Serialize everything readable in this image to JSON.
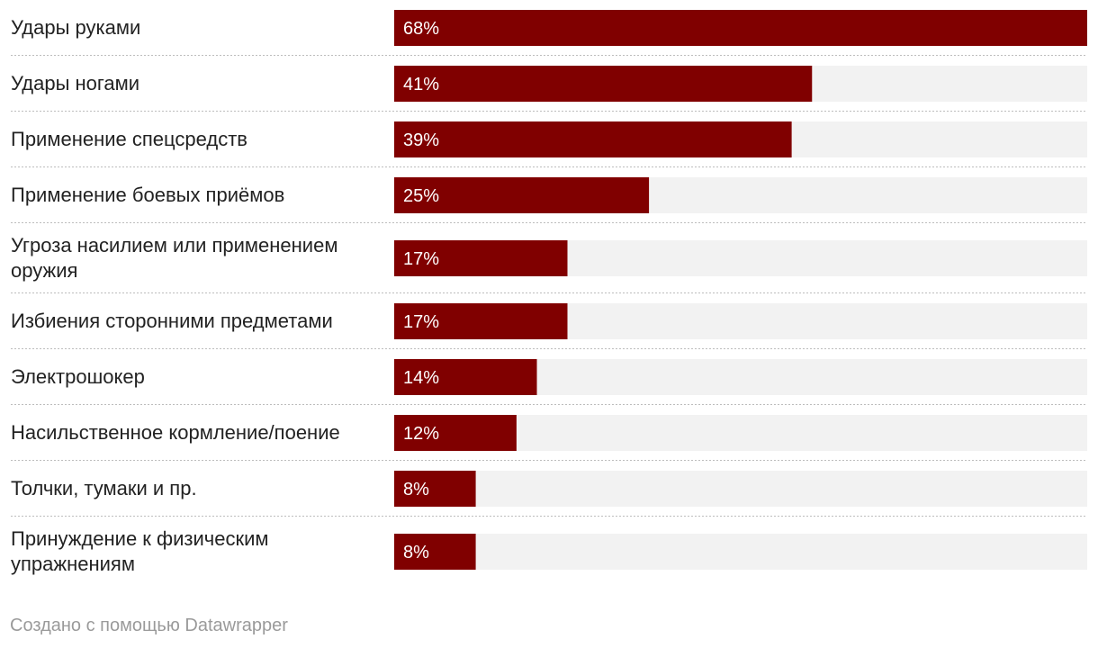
{
  "chart_data": {
    "type": "bar",
    "orientation": "horizontal",
    "categories": [
      [
        "Удары руками"
      ],
      [
        "Удары ногами"
      ],
      [
        "Применение спецсредств"
      ],
      [
        "Применение боевых приёмов"
      ],
      [
        "Угроза насилием или применением",
        "оружия"
      ],
      [
        "Избиения сторонними предметами"
      ],
      [
        "Электрошокер"
      ],
      [
        "Насильственное кормление/поение"
      ],
      [
        "Толчки, тумаки и пр."
      ],
      [
        "Принуждение к физическим",
        "упражнениям"
      ]
    ],
    "values": [
      68,
      41,
      39,
      25,
      17,
      17,
      14,
      12,
      8,
      8
    ],
    "value_labels": [
      "68%",
      "41%",
      "39%",
      "25%",
      "17%",
      "17%",
      "14%",
      "12%",
      "8%",
      "8%"
    ],
    "xlim": [
      0,
      68
    ],
    "bar_color": "#800000",
    "track_color": "#f2f2f2",
    "value_label_color": "#ffffff",
    "separator": "dotted"
  },
  "footer": {
    "credit": "Создано с помощью Datawrapper"
  }
}
